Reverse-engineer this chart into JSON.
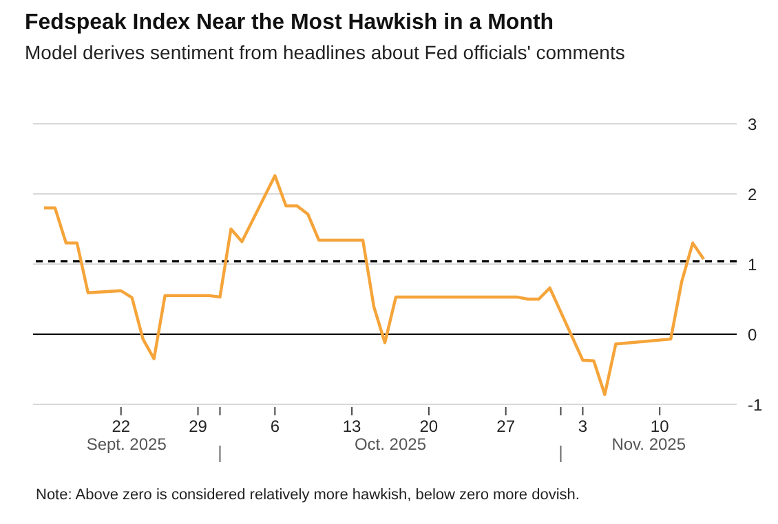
{
  "chart_data": {
    "type": "line",
    "title": "Fedspeak Index Near the Most Hawkish in a Month",
    "subtitle": "Model derives sentiment from headlines about Fed officials' comments",
    "x": [
      "2025-09-15",
      "2025-09-16",
      "2025-09-17",
      "2025-09-18",
      "2025-09-19",
      "2025-09-22",
      "2025-09-23",
      "2025-09-24",
      "2025-09-25",
      "2025-09-26",
      "2025-09-30",
      "2025-10-01",
      "2025-10-02",
      "2025-10-03",
      "2025-10-06",
      "2025-10-07",
      "2025-10-08",
      "2025-10-09",
      "2025-10-10",
      "2025-10-14",
      "2025-10-15",
      "2025-10-16",
      "2025-10-17",
      "2025-10-28",
      "2025-10-29",
      "2025-10-30",
      "2025-10-31",
      "2025-11-03",
      "2025-11-04",
      "2025-11-05",
      "2025-11-06",
      "2025-11-11",
      "2025-11-12",
      "2025-11-13",
      "2025-11-14"
    ],
    "series": [
      {
        "color": "#f5a43a",
        "values": [
          1.8,
          1.8,
          1.3,
          1.3,
          0.59,
          0.62,
          0.52,
          -0.07,
          -0.35,
          0.55,
          0.55,
          0.53,
          1.5,
          1.32,
          2.26,
          1.83,
          1.83,
          1.71,
          1.34,
          1.34,
          0.39,
          -0.12,
          0.53,
          0.53,
          0.5,
          0.5,
          0.66,
          -0.37,
          -0.38,
          -0.86,
          -0.14,
          -0.07,
          0.75,
          1.3,
          1.07
        ]
      }
    ],
    "xlim": [
      "2025-09-14",
      "2025-11-17"
    ],
    "xticks": [
      {
        "value": "2025-09-22",
        "label": "22"
      },
      {
        "value": "2025-09-29",
        "label": "29"
      },
      {
        "value": "2025-10-01",
        "label": null
      },
      {
        "value": "2025-10-06",
        "label": "6"
      },
      {
        "value": "2025-10-13",
        "label": "13"
      },
      {
        "value": "2025-10-20",
        "label": "20"
      },
      {
        "value": "2025-10-27",
        "label": "27"
      },
      {
        "value": "2025-11-01",
        "label": null
      },
      {
        "value": "2025-11-03",
        "label": "3"
      },
      {
        "value": "2025-11-10",
        "label": "10"
      }
    ],
    "ylim": [
      -1,
      3
    ],
    "yticks": [
      -1,
      0,
      1,
      2,
      3
    ],
    "grid": "y",
    "legend": false,
    "marker": "none",
    "line_style": "solid",
    "ref_lines": [
      {
        "axis": "y",
        "value": 0,
        "color": "#000000",
        "line_style": "solid"
      },
      {
        "axis": "y",
        "value": 1.04,
        "color": "#000000",
        "line_style": "dashed"
      }
    ],
    "annotations": [
      "Sept. 2025",
      "Oct. 2025",
      "Nov. 2025",
      "Note: Above zero is considered relatively more hawkish, below zero more dovish."
    ]
  }
}
